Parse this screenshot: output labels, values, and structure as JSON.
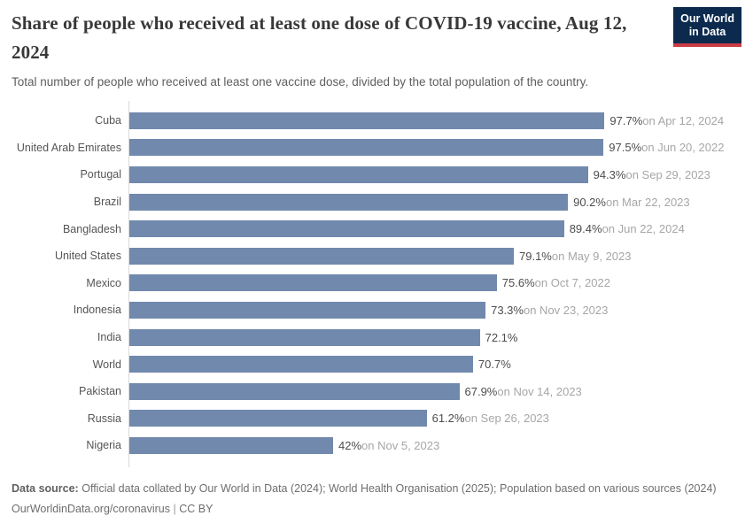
{
  "header": {
    "title": "Share of people who received at least one dose of COVID-19 vaccine, Aug 12, 2024",
    "subtitle": "Total number of people who received at least one vaccine dose, divided by the total population of the country.",
    "logo": {
      "line1": "Our World",
      "line2": "in Data"
    }
  },
  "chart_data": {
    "type": "bar",
    "orientation": "horizontal",
    "title": "Share of people who received at least one dose of COVID-19 vaccine, Aug 12, 2024",
    "xlabel": "",
    "ylabel": "",
    "xlim": [
      0,
      100
    ],
    "grid": false,
    "legend": "none",
    "bar_color": "#7189ad",
    "categories": [
      "Cuba",
      "United Arab Emirates",
      "Portugal",
      "Brazil",
      "Bangladesh",
      "United States",
      "Mexico",
      "Indonesia",
      "India",
      "World",
      "Pakistan",
      "Russia",
      "Nigeria"
    ],
    "values": [
      97.7,
      97.5,
      94.3,
      90.2,
      89.4,
      79.1,
      75.6,
      73.3,
      72.1,
      70.7,
      67.9,
      61.2,
      42
    ],
    "value_labels": [
      "97.7%",
      "97.5%",
      "94.3%",
      "90.2%",
      "89.4%",
      "79.1%",
      "75.6%",
      "73.3%",
      "72.1%",
      "70.7%",
      "67.9%",
      "61.2%",
      "42%"
    ],
    "date_labels": [
      "on Apr 12, 2024",
      "on Jun 20, 2022",
      "on Sep 29, 2023",
      "on Mar 22, 2023",
      "on Jun 22, 2024",
      "on May 9, 2023",
      "on Oct 7, 2022",
      "on Nov 23, 2023",
      "",
      "",
      "on Nov 14, 2023",
      "on Sep 26, 2023",
      "on Nov 5, 2023"
    ]
  },
  "footer": {
    "source_label": "Data source:",
    "source_text": "Official data collated by Our World in Data (2024); World Health Organisation (2025); Population based on various sources (2024)",
    "link": "OurWorldinData.org/coronavirus",
    "separator": "|",
    "license": "CC BY"
  },
  "colors": {
    "bar": "#7189ad",
    "logo_background": "#0b2a4e",
    "logo_accent": "#c93c46",
    "axis_line": "#dadada"
  }
}
